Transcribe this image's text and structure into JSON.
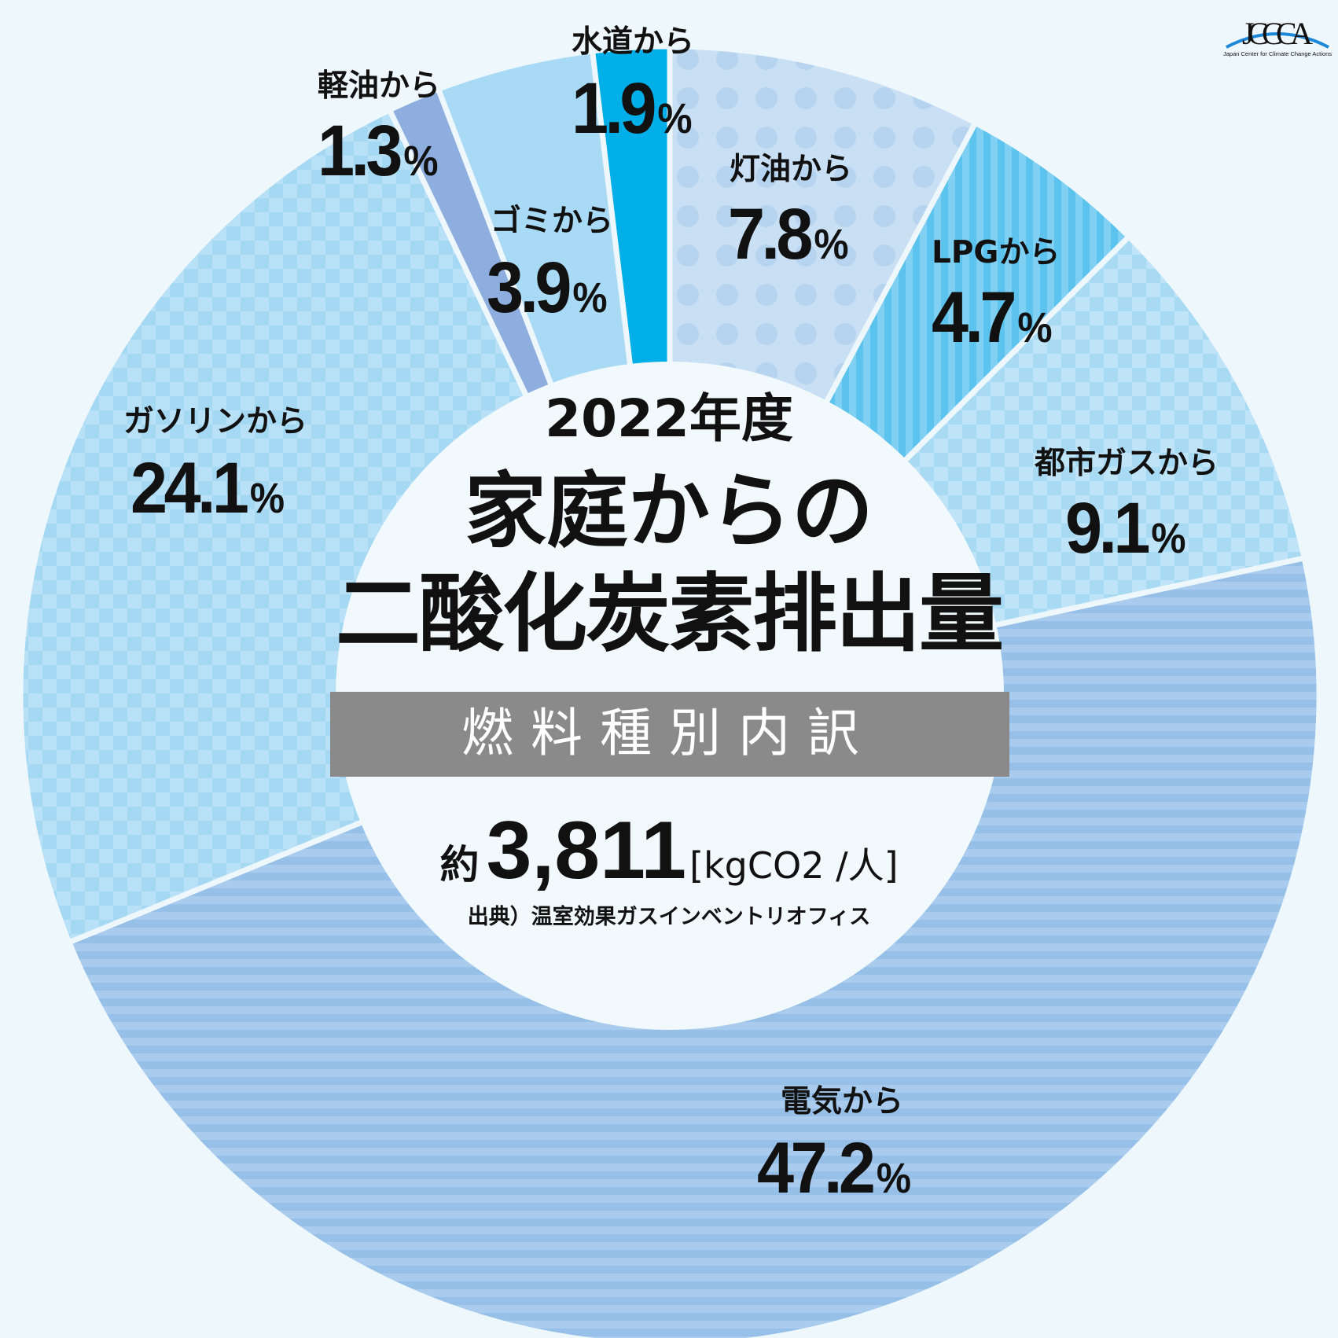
{
  "title_year": "2022年度",
  "title_line1": "家庭からの",
  "title_line2": "二酸化炭素排出量",
  "band_label": "燃料種別内訳",
  "total": {
    "prefix": "約",
    "value": "3,811",
    "unit": "[kgCO2 /人]"
  },
  "source": "出典）温室効果ガスインベントリオフィス",
  "logo": {
    "text": "JCCCA",
    "subtitle": "Japan Center for Climate Change Actions"
  },
  "colors": {
    "background": "#eef7fb",
    "center": "#f2f9fc",
    "band": "#8a8a8a"
  },
  "chart_data": {
    "type": "pie",
    "style": "donut",
    "start": "top, clockwise",
    "categories": [
      "灯油から",
      "LPGから",
      "都市ガスから",
      "電気から",
      "ガソリンから",
      "軽油から",
      "ゴミから",
      "水道から"
    ],
    "values": [
      7.8,
      4.7,
      9.1,
      47.2,
      24.1,
      1.3,
      3.9,
      1.9
    ],
    "labels": [
      "7.8",
      "4.7",
      "9.1",
      "47.2",
      "24.1",
      "1.3",
      "3.9",
      "1.9"
    ],
    "unit": "%",
    "colors": [
      "#c9dff4",
      "#5cc2ee",
      "#bfe4f8",
      "#97c0e8",
      "#b5dff6",
      "#8eaedf",
      "#a9daf5",
      "#00aee8"
    ],
    "patterns": [
      "dots",
      "vertical-stripes",
      "checker",
      "horizontal-stripes",
      "checker",
      "none",
      "none",
      "none"
    ]
  }
}
